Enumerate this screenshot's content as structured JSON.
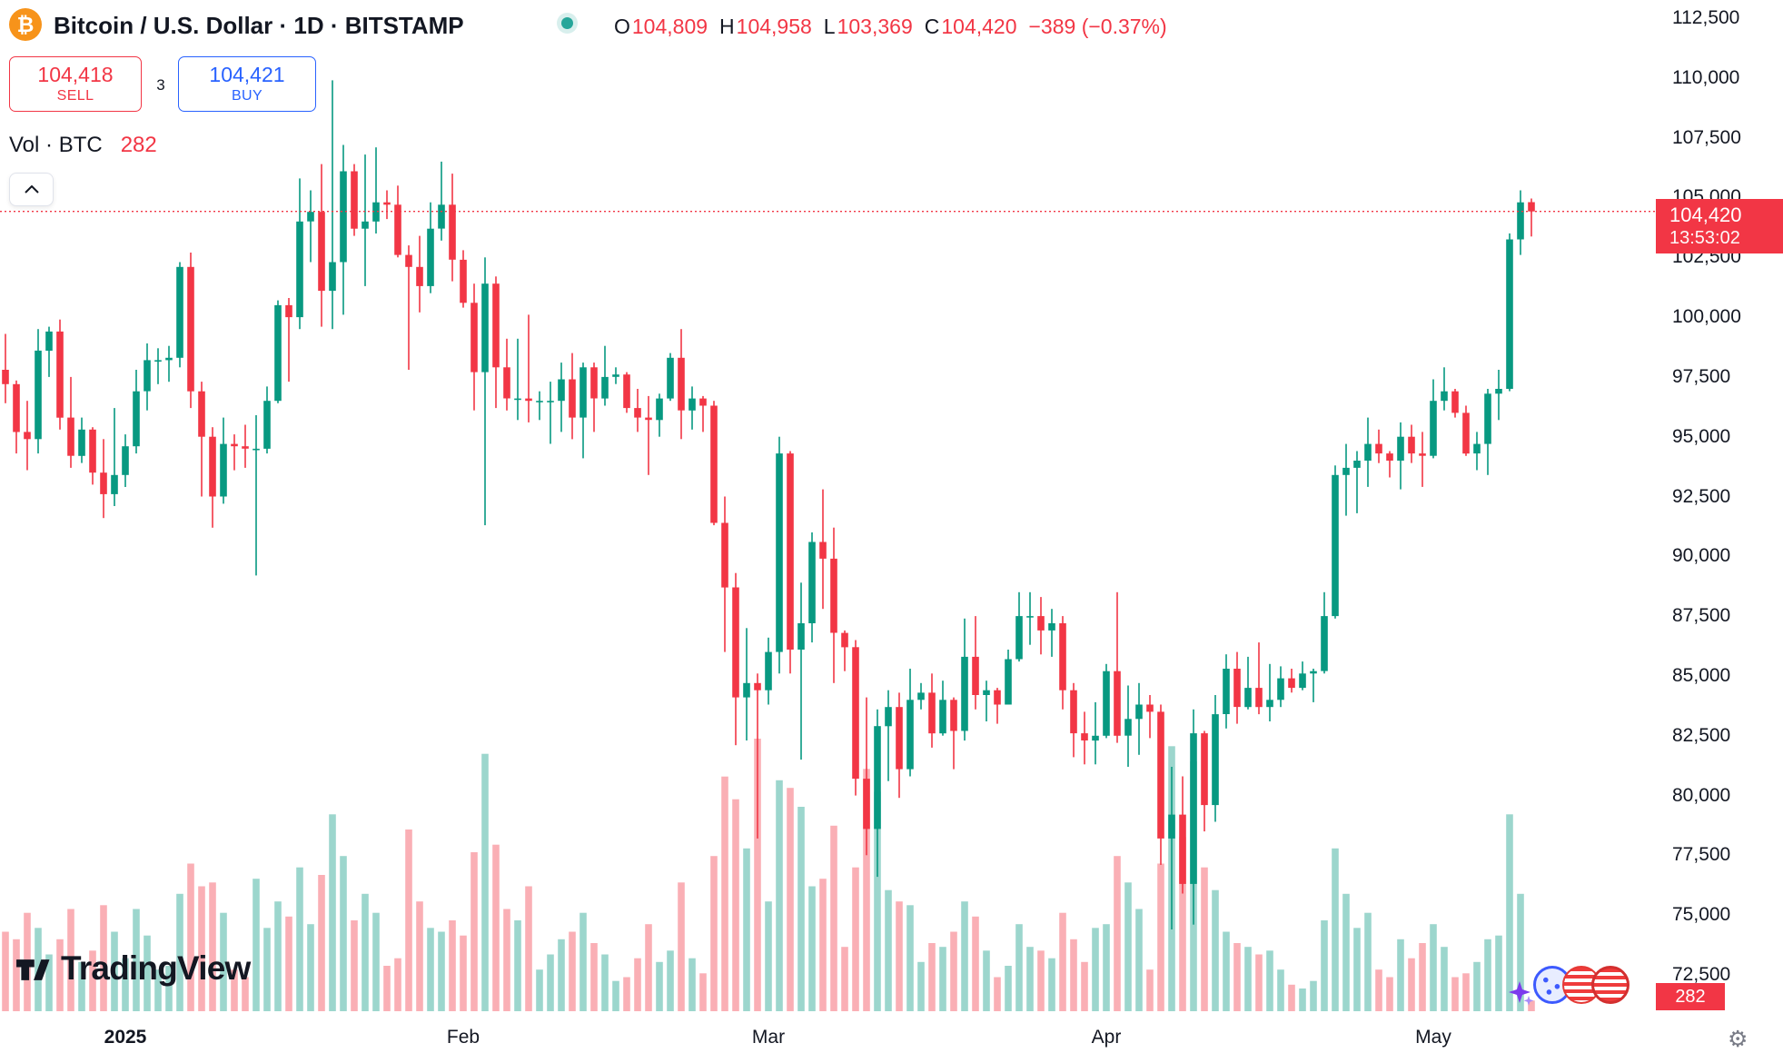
{
  "header": {
    "symbol_title": "Bitcoin / U.S. Dollar · 1D · BITSTAMP",
    "ohlc": {
      "o_label": "O",
      "o": "104,809",
      "h_label": "H",
      "h": "104,958",
      "l_label": "L",
      "l": "103,369",
      "c_label": "C",
      "c": "104,420",
      "change": "−389 (−0.37%)"
    },
    "sell_button": {
      "price": "104,418",
      "label": "SELL"
    },
    "spread": "3",
    "buy_button": {
      "price": "104,421",
      "label": "BUY"
    },
    "volume_row": {
      "label": "Vol · BTC",
      "value": "282"
    }
  },
  "watermark": {
    "text": "TradingView"
  },
  "price_label": {
    "price": "104,420",
    "countdown": "13:53:02"
  },
  "volume_label": {
    "value": "282"
  },
  "price_axis": {
    "ticks": [
      {
        "text": "112,500",
        "value": 112500
      },
      {
        "text": "110,000",
        "value": 110000
      },
      {
        "text": "107,500",
        "value": 107500
      },
      {
        "text": "105,000",
        "value": 105000
      },
      {
        "text": "102,500",
        "value": 102500
      },
      {
        "text": "100,000",
        "value": 100000
      },
      {
        "text": "97,500",
        "value": 97500
      },
      {
        "text": "95,000",
        "value": 95000
      },
      {
        "text": "92,500",
        "value": 92500
      },
      {
        "text": "90,000",
        "value": 90000
      },
      {
        "text": "87,500",
        "value": 87500
      },
      {
        "text": "85,000",
        "value": 85000
      },
      {
        "text": "82,500",
        "value": 82500
      },
      {
        "text": "80,000",
        "value": 80000
      },
      {
        "text": "77,500",
        "value": 77500
      },
      {
        "text": "75,000",
        "value": 75000
      },
      {
        "text": "72,500",
        "value": 72500
      }
    ]
  },
  "time_axis": {
    "labels": [
      {
        "text": "2025",
        "index": 12,
        "bold": true
      },
      {
        "text": "Feb",
        "index": 43
      },
      {
        "text": "Mar",
        "index": 71
      },
      {
        "text": "Apr",
        "index": 102
      },
      {
        "text": "May",
        "index": 132
      }
    ]
  },
  "colors": {
    "up": "#089981",
    "down": "#F23645",
    "blue": "#2962FF",
    "orange": "#F7931A",
    "teal": "#26A69A",
    "text": "#131722",
    "vol_up": "rgba(8,153,129,0.4)",
    "vol_down": "rgba(242,54,69,0.4)"
  },
  "chart_data": {
    "type": "candlestick",
    "title": "Bitcoin / U.S. Dollar",
    "exchange": "BITSTAMP",
    "interval": "1D",
    "volume_unit": "BTC",
    "y_range_visible": [
      72500,
      112500
    ],
    "price_line": {
      "value": 104420,
      "color": "#F23645",
      "style": "dotted"
    },
    "current_bar": {
      "open": 104809,
      "high": 104958,
      "low": 103369,
      "close": 104420,
      "change": -389,
      "change_pct": -0.37,
      "volume_btc": 282
    },
    "candles_format": [
      "date",
      "open",
      "high",
      "low",
      "close",
      "volume"
    ],
    "candles": [
      [
        "2024-12-20",
        97460,
        98250,
        95700,
        97800,
        3200
      ],
      [
        "2024-12-21",
        97800,
        99300,
        96400,
        97200,
        2100
      ],
      [
        "2024-12-22",
        97200,
        97350,
        94300,
        95200,
        1900
      ],
      [
        "2024-12-23",
        95200,
        96500,
        93600,
        94900,
        2600
      ],
      [
        "2024-12-24",
        94900,
        99500,
        94300,
        98600,
        2200
      ],
      [
        "2024-12-25",
        98600,
        99600,
        97500,
        99400,
        1500
      ],
      [
        "2024-12-26",
        99400,
        99900,
        95300,
        95800,
        1900
      ],
      [
        "2024-12-27",
        95800,
        97500,
        93700,
        94200,
        2700
      ],
      [
        "2024-12-28",
        94200,
        95800,
        93900,
        95300,
        1300
      ],
      [
        "2024-12-29",
        95300,
        95400,
        93000,
        93500,
        1600
      ],
      [
        "2024-12-30",
        93500,
        94900,
        91600,
        92600,
        2800
      ],
      [
        "2024-12-31",
        92600,
        96200,
        92100,
        93400,
        2100
      ],
      [
        "2025-01-01",
        93400,
        95100,
        92900,
        94600,
        1400
      ],
      [
        "2025-01-02",
        94600,
        97800,
        94300,
        96900,
        2700
      ],
      [
        "2025-01-03",
        96900,
        98900,
        96100,
        98200,
        2000
      ],
      [
        "2025-01-04",
        98200,
        98700,
        97200,
        98200,
        1100
      ],
      [
        "2025-01-05",
        98200,
        98800,
        97300,
        98300,
        1200
      ],
      [
        "2025-01-06",
        98300,
        102300,
        97900,
        102100,
        3100
      ],
      [
        "2025-01-07",
        102100,
        102700,
        96200,
        96900,
        3900
      ],
      [
        "2025-01-08",
        96900,
        97300,
        92500,
        95000,
        3300
      ],
      [
        "2025-01-09",
        95000,
        95400,
        91200,
        92500,
        3400
      ],
      [
        "2025-01-10",
        92500,
        95800,
        92200,
        94700,
        2600
      ],
      [
        "2025-01-11",
        94700,
        95100,
        93600,
        94600,
        1100
      ],
      [
        "2025-01-12",
        94600,
        95500,
        93700,
        94500,
        900
      ],
      [
        "2025-01-13",
        94500,
        95900,
        89200,
        94500,
        3500
      ],
      [
        "2025-01-14",
        94500,
        97100,
        94300,
        96500,
        2200
      ],
      [
        "2025-01-15",
        96500,
        100700,
        96400,
        100500,
        2900
      ],
      [
        "2025-01-16",
        100500,
        100800,
        97300,
        100000,
        2500
      ],
      [
        "2025-01-17",
        100000,
        105800,
        99500,
        104000,
        3800
      ],
      [
        "2025-01-18",
        104000,
        105300,
        102300,
        104400,
        2300
      ],
      [
        "2025-01-19",
        104400,
        106400,
        99600,
        101100,
        3600
      ],
      [
        "2025-01-20",
        101100,
        109900,
        99500,
        102300,
        5200
      ],
      [
        "2025-01-21",
        102300,
        107200,
        100100,
        106100,
        4100
      ],
      [
        "2025-01-22",
        106100,
        106400,
        103400,
        103700,
        2400
      ],
      [
        "2025-01-23",
        103700,
        106800,
        101300,
        104000,
        3100
      ],
      [
        "2025-01-24",
        104000,
        107100,
        103500,
        104800,
        2600
      ],
      [
        "2025-01-25",
        104800,
        105300,
        104100,
        104700,
        1200
      ],
      [
        "2025-01-26",
        104700,
        105500,
        102500,
        102600,
        1400
      ],
      [
        "2025-01-27",
        102600,
        103000,
        97800,
        102100,
        4800
      ],
      [
        "2025-01-28",
        102100,
        103400,
        100200,
        101300,
        2900
      ],
      [
        "2025-01-29",
        101300,
        104800,
        101000,
        103700,
        2200
      ],
      [
        "2025-01-30",
        103700,
        106500,
        103200,
        104700,
        2100
      ],
      [
        "2025-01-31",
        104700,
        106000,
        101500,
        102400,
        2400
      ],
      [
        "2025-02-01",
        102400,
        102800,
        100400,
        100600,
        2000
      ],
      [
        "2025-02-02",
        100600,
        101400,
        96100,
        97700,
        4200
      ],
      [
        "2025-02-03",
        97700,
        102500,
        91300,
        101400,
        6800
      ],
      [
        "2025-02-04",
        101400,
        101700,
        96200,
        97900,
        4400
      ],
      [
        "2025-02-05",
        97900,
        99100,
        96100,
        96600,
        2700
      ],
      [
        "2025-02-06",
        96600,
        99100,
        95700,
        96600,
        2400
      ],
      [
        "2025-02-07",
        96600,
        100100,
        95600,
        96500,
        3300
      ],
      [
        "2025-02-08",
        96500,
        96900,
        95700,
        96500,
        1100
      ],
      [
        "2025-02-09",
        96500,
        97300,
        94700,
        96500,
        1500
      ],
      [
        "2025-02-10",
        96500,
        98100,
        95200,
        97400,
        1900
      ],
      [
        "2025-02-11",
        97400,
        98500,
        94900,
        95800,
        2100
      ],
      [
        "2025-02-12",
        95800,
        98100,
        94100,
        97900,
        2600
      ],
      [
        "2025-02-13",
        97900,
        98100,
        95200,
        96600,
        1800
      ],
      [
        "2025-02-14",
        96600,
        98800,
        96300,
        97500,
        1500
      ],
      [
        "2025-02-15",
        97500,
        97900,
        97200,
        97600,
        800
      ],
      [
        "2025-02-16",
        97600,
        97700,
        96000,
        96200,
        900
      ],
      [
        "2025-02-17",
        96200,
        97000,
        95200,
        95800,
        1400
      ],
      [
        "2025-02-18",
        95800,
        96700,
        93400,
        95700,
        2300
      ],
      [
        "2025-02-19",
        95700,
        96800,
        95000,
        96600,
        1300
      ],
      [
        "2025-02-20",
        96600,
        98500,
        96500,
        98300,
        1600
      ],
      [
        "2025-02-21",
        98300,
        99500,
        94900,
        96100,
        3400
      ],
      [
        "2025-02-22",
        96100,
        97100,
        95300,
        96600,
        1400
      ],
      [
        "2025-02-23",
        96600,
        96700,
        95200,
        96300,
        1000
      ],
      [
        "2025-02-24",
        96300,
        96500,
        91300,
        91400,
        4100
      ],
      [
        "2025-02-25",
        91400,
        92500,
        86000,
        88700,
        6200
      ],
      [
        "2025-02-26",
        88700,
        89300,
        82100,
        84100,
        5600
      ],
      [
        "2025-02-27",
        84100,
        87000,
        82300,
        84700,
        4300
      ],
      [
        "2025-02-28",
        84700,
        85100,
        78200,
        84400,
        7200
      ],
      [
        "2025-03-01",
        84400,
        86600,
        83800,
        86000,
        2900
      ],
      [
        "2025-03-02",
        86000,
        95000,
        85100,
        94300,
        6100
      ],
      [
        "2025-03-03",
        94300,
        94400,
        85100,
        86100,
        5900
      ],
      [
        "2025-03-04",
        86100,
        88900,
        81500,
        87200,
        5400
      ],
      [
        "2025-03-05",
        87200,
        91000,
        86400,
        90600,
        3300
      ],
      [
        "2025-03-06",
        90600,
        92800,
        87800,
        89900,
        3500
      ],
      [
        "2025-03-07",
        89900,
        91200,
        84700,
        86800,
        4900
      ],
      [
        "2025-03-08",
        86800,
        86900,
        85200,
        86200,
        1700
      ],
      [
        "2025-03-09",
        86200,
        86500,
        80000,
        80700,
        3800
      ],
      [
        "2025-03-10",
        80700,
        84100,
        77500,
        78600,
        6400
      ],
      [
        "2025-03-11",
        78600,
        83600,
        76600,
        82900,
        5800
      ],
      [
        "2025-03-12",
        82900,
        84400,
        80600,
        83700,
        3200
      ],
      [
        "2025-03-13",
        83700,
        84300,
        79900,
        81100,
        2900
      ],
      [
        "2025-03-14",
        81100,
        85300,
        80800,
        84000,
        2800
      ],
      [
        "2025-03-15",
        84000,
        84700,
        83600,
        84300,
        1300
      ],
      [
        "2025-03-16",
        84300,
        85100,
        82000,
        82600,
        1800
      ],
      [
        "2025-03-17",
        82600,
        84800,
        82500,
        84000,
        1700
      ],
      [
        "2025-03-18",
        84000,
        84100,
        81100,
        82700,
        2100
      ],
      [
        "2025-03-19",
        82700,
        87400,
        82300,
        85800,
        2900
      ],
      [
        "2025-03-20",
        85800,
        87500,
        83600,
        84200,
        2500
      ],
      [
        "2025-03-21",
        84200,
        84800,
        83100,
        84400,
        1600
      ],
      [
        "2025-03-22",
        84400,
        84500,
        83000,
        83800,
        900
      ],
      [
        "2025-03-23",
        83800,
        86100,
        83800,
        85700,
        1200
      ],
      [
        "2025-03-24",
        85700,
        88500,
        85600,
        87500,
        2300
      ],
      [
        "2025-03-25",
        87500,
        88500,
        86300,
        87500,
        1700
      ],
      [
        "2025-03-26",
        87500,
        88300,
        85900,
        86900,
        1600
      ],
      [
        "2025-03-27",
        86900,
        87800,
        85800,
        87200,
        1400
      ],
      [
        "2025-03-28",
        87200,
        87500,
        83600,
        84400,
        2600
      ],
      [
        "2025-03-29",
        84400,
        84700,
        81600,
        82600,
        1900
      ],
      [
        "2025-03-30",
        82600,
        83500,
        81300,
        82300,
        1300
      ],
      [
        "2025-03-31",
        82300,
        83900,
        81300,
        82500,
        2200
      ],
      [
        "2025-04-01",
        82500,
        85500,
        82400,
        85200,
        2300
      ],
      [
        "2025-04-02",
        85200,
        88500,
        82200,
        82500,
        4100
      ],
      [
        "2025-04-03",
        82500,
        84600,
        81200,
        83200,
        3400
      ],
      [
        "2025-04-04",
        83200,
        84700,
        81700,
        83800,
        2700
      ],
      [
        "2025-04-05",
        83800,
        84200,
        82400,
        83500,
        1100
      ],
      [
        "2025-04-06",
        83500,
        83800,
        77100,
        78200,
        3900
      ],
      [
        "2025-04-07",
        78200,
        81200,
        74400,
        79200,
        7000
      ],
      [
        "2025-04-08",
        79200,
        80800,
        75900,
        76300,
        4600
      ],
      [
        "2025-04-09",
        76300,
        83600,
        74600,
        82600,
        6600
      ],
      [
        "2025-04-10",
        82600,
        82700,
        78500,
        79600,
        3800
      ],
      [
        "2025-04-11",
        79600,
        84200,
        78900,
        83400,
        3200
      ],
      [
        "2025-04-12",
        83400,
        85900,
        82800,
        85300,
        2100
      ],
      [
        "2025-04-13",
        85300,
        86000,
        83000,
        83700,
        1800
      ],
      [
        "2025-04-14",
        83700,
        85800,
        83600,
        84500,
        1700
      ],
      [
        "2025-04-15",
        84500,
        86400,
        83400,
        83700,
        1500
      ],
      [
        "2025-04-16",
        83700,
        85500,
        83100,
        84000,
        1600
      ],
      [
        "2025-04-17",
        84000,
        85400,
        83700,
        84900,
        1100
      ],
      [
        "2025-04-18",
        84900,
        85300,
        84300,
        84500,
        700
      ],
      [
        "2025-04-19",
        84500,
        85600,
        84400,
        85100,
        600
      ],
      [
        "2025-04-20",
        85100,
        85300,
        83900,
        85200,
        800
      ],
      [
        "2025-04-21",
        85200,
        88500,
        85100,
        87500,
        2400
      ],
      [
        "2025-04-22",
        87500,
        93800,
        87400,
        93400,
        4300
      ],
      [
        "2025-04-23",
        93400,
        94700,
        91700,
        93700,
        3100
      ],
      [
        "2025-04-24",
        93700,
        94400,
        91800,
        94000,
        2200
      ],
      [
        "2025-04-25",
        94000,
        95800,
        92900,
        94700,
        2600
      ],
      [
        "2025-04-26",
        94700,
        95300,
        93900,
        94300,
        1100
      ],
      [
        "2025-04-27",
        94300,
        94400,
        93300,
        94000,
        900
      ],
      [
        "2025-04-28",
        94000,
        95600,
        92800,
        95000,
        1900
      ],
      [
        "2025-04-29",
        95000,
        95500,
        93900,
        94300,
        1400
      ],
      [
        "2025-04-30",
        94300,
        95200,
        92900,
        94200,
        1800
      ],
      [
        "2025-05-01",
        94200,
        97400,
        94100,
        96500,
        2300
      ],
      [
        "2025-05-02",
        96500,
        97900,
        96100,
        96900,
        1700
      ],
      [
        "2025-05-03",
        96900,
        97000,
        95800,
        96000,
        900
      ],
      [
        "2025-05-04",
        96000,
        96300,
        94200,
        94300,
        1000
      ],
      [
        "2025-05-05",
        94300,
        95200,
        93600,
        94700,
        1300
      ],
      [
        "2025-05-06",
        94700,
        97000,
        93400,
        96800,
        1900
      ],
      [
        "2025-05-07",
        96800,
        97800,
        95700,
        97000,
        2000
      ],
      [
        "2025-05-08",
        97000,
        103500,
        96900,
        103250,
        5200
      ],
      [
        "2025-05-09",
        103250,
        105300,
        102600,
        104800,
        3100
      ],
      [
        "2025-05-10",
        104809,
        104958,
        103369,
        104420,
        282
      ]
    ]
  }
}
